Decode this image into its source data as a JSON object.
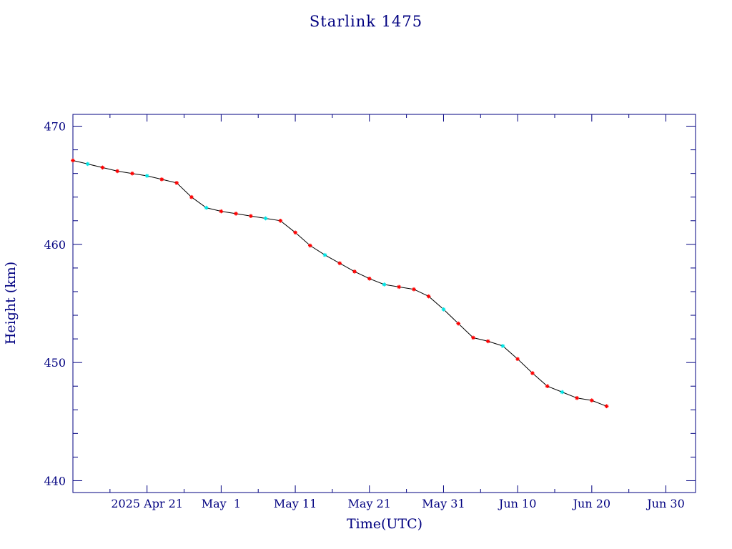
{
  "chart_data": {
    "type": "line",
    "title": "Starlink 1475",
    "xlabel": "Time(UTC)",
    "ylabel": "Height (km)",
    "xlim": [
      "2025-04-11",
      "2025-07-04"
    ],
    "ylim": [
      439,
      471
    ],
    "x_tick_labels": [
      {
        "date": "2025-04-21",
        "label": "2025 Apr 21"
      },
      {
        "date": "2025-05-01",
        "label": "May  1"
      },
      {
        "date": "2025-05-11",
        "label": "May 11"
      },
      {
        "date": "2025-05-21",
        "label": "May 21"
      },
      {
        "date": "2025-05-31",
        "label": "May 31"
      },
      {
        "date": "2025-06-10",
        "label": "Jun 10"
      },
      {
        "date": "2025-06-20",
        "label": "Jun 20"
      },
      {
        "date": "2025-06-30",
        "label": "Jun 30"
      }
    ],
    "y_ticks": [
      440,
      450,
      460,
      470
    ],
    "grid": false,
    "colors": {
      "axes": "#000080",
      "line": "#000000",
      "markers": "#ff0000",
      "markers_alt": "#00e5e5"
    },
    "series": [
      {
        "marker": "asterisk",
        "points": [
          [
            "2025-04-11",
            467.1
          ],
          [
            "2025-04-13",
            466.8
          ],
          [
            "2025-04-15",
            466.5
          ],
          [
            "2025-04-17",
            466.2
          ],
          [
            "2025-04-19",
            466.0
          ],
          [
            "2025-04-21",
            465.8
          ],
          [
            "2025-04-23",
            465.5
          ],
          [
            "2025-04-25",
            465.2
          ],
          [
            "2025-04-27",
            464.0
          ],
          [
            "2025-04-29",
            463.1
          ],
          [
            "2025-05-01",
            462.8
          ],
          [
            "2025-05-03",
            462.6
          ],
          [
            "2025-05-05",
            462.4
          ],
          [
            "2025-05-07",
            462.2
          ],
          [
            "2025-05-09",
            462.0
          ],
          [
            "2025-05-11",
            461.0
          ],
          [
            "2025-05-13",
            459.9
          ],
          [
            "2025-05-15",
            459.1
          ],
          [
            "2025-05-17",
            458.4
          ],
          [
            "2025-05-19",
            457.7
          ],
          [
            "2025-05-21",
            457.1
          ],
          [
            "2025-05-23",
            456.6
          ],
          [
            "2025-05-25",
            456.4
          ],
          [
            "2025-05-27",
            456.2
          ],
          [
            "2025-05-29",
            455.6
          ],
          [
            "2025-05-31",
            454.5
          ],
          [
            "2025-06-02",
            453.3
          ],
          [
            "2025-06-04",
            452.1
          ],
          [
            "2025-06-06",
            451.8
          ],
          [
            "2025-06-08",
            451.4
          ],
          [
            "2025-06-10",
            450.3
          ],
          [
            "2025-06-12",
            449.1
          ],
          [
            "2025-06-14",
            448.0
          ],
          [
            "2025-06-16",
            447.5
          ],
          [
            "2025-06-18",
            447.0
          ],
          [
            "2025-06-20",
            446.8
          ],
          [
            "2025-06-22",
            446.3
          ]
        ]
      }
    ]
  }
}
